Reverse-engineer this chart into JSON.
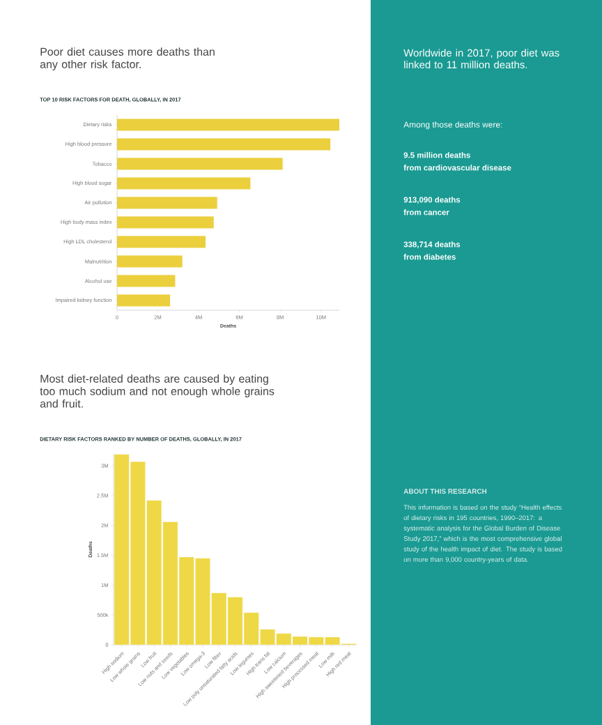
{
  "chart_data": [
    {
      "type": "bar",
      "orientation": "horizontal",
      "title": "Poor diet causes more deaths than any other risk factor.",
      "subtitle": "TOP 10 RISK FACTORS FOR DEATH, GLOBALLY, IN 2017",
      "xlabel": "Deaths",
      "categories": [
        "Dietary risks",
        "High blood pressure",
        "Tobacco",
        "High blood sugar",
        "Air pollution",
        "High body mass index",
        "High LDL cholesterol",
        "Malnutrition",
        "Alcohol use",
        "Impaired kidney function"
      ],
      "values": [
        10900000,
        10460000,
        8120000,
        6540000,
        4910000,
        4740000,
        4340000,
        3200000,
        2850000,
        2600000
      ],
      "color": "#ebcf3c",
      "xlim": [
        0,
        10900000
      ],
      "xticks": [
        0,
        {
          "value": 2000000,
          "label": "2M"
        },
        {
          "value": 4000000,
          "label": "4M"
        },
        {
          "value": 6000000,
          "label": "6M"
        },
        {
          "value": 8000000,
          "label": "8M"
        },
        {
          "value": 10000000,
          "label": "10M"
        }
      ]
    },
    {
      "type": "bar",
      "title": "Most diet-related deaths are caused by eating too much sodium and not enough whole grains and fruit.",
      "subtitle": "DIETARY RISK FACTORS RANKED BY NUMBER OF DEATHS, GLOBALLY, IN 2017",
      "ylabel": "Deaths",
      "categories": [
        "High sodium",
        "Low whole grains",
        "Low fruit",
        "Low nuts and seeds",
        "Low vegetables",
        "Low omega-3",
        "Low fiber",
        "Low poly unsaturated fatty acids",
        "Low legumes",
        "High trans fat",
        "Low calcium",
        "High sweetened beverages",
        "High processed meat",
        "Low milk",
        "High red meat"
      ],
      "values": [
        3190000,
        3070000,
        2420000,
        2060000,
        1470000,
        1450000,
        870000,
        800000,
        540000,
        260000,
        190000,
        140000,
        130000,
        130000,
        20000
      ],
      "color": "#eed845",
      "ylim": [
        0,
        3200000
      ],
      "yticks": [
        0,
        {
          "value": 500000,
          "label": "500k"
        },
        {
          "value": 1000000,
          "label": "1M"
        },
        {
          "value": 1500000,
          "label": "1.5M"
        },
        {
          "value": 2000000,
          "label": "2M"
        },
        {
          "value": 2500000,
          "label": "2.5M"
        },
        {
          "value": 3000000,
          "label": "3M"
        }
      ]
    },
    {
      "type": "other",
      "title": "Worldwide in 2017, poor diet was linked to 11 million deaths.",
      "subtitle": "Among those deaths were:",
      "annotations": [
        "9.5 million deaths",
        "from cardiovascular disease",
        "913,090 deaths",
        "from cancer",
        "338,714 deaths",
        "from diabetes",
        "ABOUT THIS RESEARCH",
        "This information is based on the study “Health effects of dietary risks in 195 countries, 1990–2017: a systematic analysis for the Global Burden of Disease Study 2017,” which is the most comprehensive global study of the health impact of diet. The study is based on more than 9,000 country-years of data."
      ]
    }
  ]
}
